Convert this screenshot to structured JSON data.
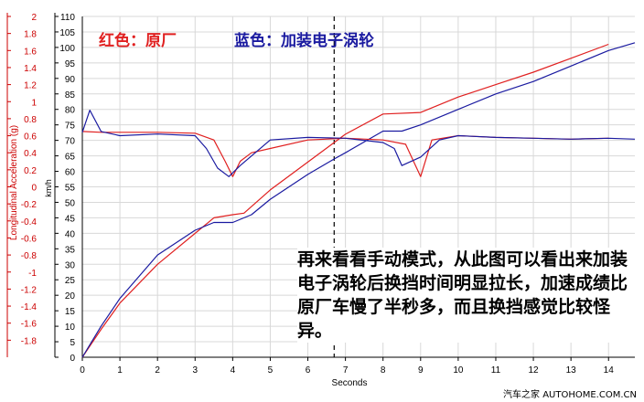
{
  "legend": {
    "red_label": "红色：原厂",
    "blue_label": "蓝色：加装电子涡轮"
  },
  "annotation": "再来看看手动模式，从此图可以看出来加装电子涡轮后换挡时间明显拉长，加速成绩比原厂车慢了半秒多，而且换挡感觉比较怪异。",
  "watermark": "汽车之家 AUTOHOME.COM.CN",
  "colors": {
    "red": "#e02020",
    "blue": "#1a1aa0",
    "grid": "#d8d8d8",
    "marker": "#000000"
  },
  "chart_data": {
    "type": "line",
    "xlabel": "Seconds",
    "x_ticks": [
      0,
      1,
      2,
      3,
      4,
      5,
      6,
      7,
      8,
      9,
      10,
      11,
      12,
      13,
      14
    ],
    "xlim": [
      0,
      14.7
    ],
    "left_axis": {
      "label": "Longitudinal Acceleration (g)",
      "range": [
        -2,
        2
      ],
      "ticks": [
        "2",
        "1.8",
        "1.6",
        "1.4",
        "1.2",
        "1",
        "0.8",
        "0.6",
        "0.4",
        "0.2",
        "0",
        "-0.2",
        "-0.4",
        "-0.6",
        "-0.8",
        "-1",
        "-1.2",
        "-1.4",
        "-1.6",
        "-1.8"
      ]
    },
    "speed_axis": {
      "label": "km/h",
      "range": [
        0,
        110
      ],
      "ticks": [
        "110",
        "105",
        "100",
        "95",
        "90",
        "85",
        "80",
        "75",
        "70",
        "65",
        "60",
        "55",
        "50",
        "45",
        "40",
        "35",
        "30",
        "25",
        "20",
        "15",
        "10",
        "5",
        "0"
      ]
    },
    "marker_x": 6.7,
    "series": [
      {
        "color": "red",
        "kind": "speed",
        "points": [
          [
            0,
            0
          ],
          [
            0.5,
            9
          ],
          [
            1,
            17.5
          ],
          [
            2,
            30
          ],
          [
            3,
            40
          ],
          [
            3.5,
            45
          ],
          [
            4,
            46
          ],
          [
            4.3,
            46.5
          ],
          [
            5,
            54
          ],
          [
            6,
            63
          ],
          [
            7,
            72
          ],
          [
            8,
            78.5
          ],
          [
            9,
            79
          ],
          [
            10,
            84
          ],
          [
            11,
            88
          ],
          [
            12,
            92
          ],
          [
            13,
            96.5
          ],
          [
            14,
            101
          ]
        ]
      },
      {
        "color": "blue",
        "kind": "speed",
        "points": [
          [
            0,
            0
          ],
          [
            0.5,
            10
          ],
          [
            1,
            19
          ],
          [
            2,
            33
          ],
          [
            3,
            41
          ],
          [
            3.5,
            43.5
          ],
          [
            4,
            43.5
          ],
          [
            4.5,
            46
          ],
          [
            5,
            51
          ],
          [
            6,
            59
          ],
          [
            6.7,
            64
          ],
          [
            7,
            66
          ],
          [
            8,
            73
          ],
          [
            8.5,
            73
          ],
          [
            9,
            75
          ],
          [
            10,
            80
          ],
          [
            11,
            85
          ],
          [
            12,
            89
          ],
          [
            13,
            94
          ],
          [
            14,
            99
          ],
          [
            14.7,
            101.5
          ]
        ]
      },
      {
        "color": "red",
        "kind": "accel",
        "points": [
          [
            0,
            0.65
          ],
          [
            0.5,
            0.64
          ],
          [
            1,
            0.64
          ],
          [
            2,
            0.64
          ],
          [
            3,
            0.63
          ],
          [
            3.5,
            0.55
          ],
          [
            3.8,
            0.3
          ],
          [
            4,
            0.12
          ],
          [
            4.2,
            0.3
          ],
          [
            4.5,
            0.4
          ],
          [
            5,
            0.45
          ],
          [
            6,
            0.55
          ],
          [
            7,
            0.57
          ],
          [
            8,
            0.55
          ],
          [
            8.6,
            0.5
          ],
          [
            9,
            0.12
          ],
          [
            9.3,
            0.55
          ],
          [
            10,
            0.6
          ],
          [
            11,
            0.58
          ],
          [
            12,
            0.57
          ],
          [
            13,
            0.56
          ],
          [
            14,
            0.57
          ]
        ]
      },
      {
        "color": "blue",
        "kind": "accel",
        "points": [
          [
            0,
            0.64
          ],
          [
            0.2,
            0.9
          ],
          [
            0.5,
            0.65
          ],
          [
            1,
            0.6
          ],
          [
            2,
            0.62
          ],
          [
            3,
            0.6
          ],
          [
            3.3,
            0.45
          ],
          [
            3.6,
            0.22
          ],
          [
            3.9,
            0.12
          ],
          [
            4.2,
            0.25
          ],
          [
            5,
            0.55
          ],
          [
            6,
            0.58
          ],
          [
            7,
            0.57
          ],
          [
            8,
            0.52
          ],
          [
            8.3,
            0.45
          ],
          [
            8.5,
            0.25
          ],
          [
            9,
            0.35
          ],
          [
            9.5,
            0.55
          ],
          [
            10,
            0.6
          ],
          [
            11,
            0.58
          ],
          [
            12,
            0.57
          ],
          [
            13,
            0.56
          ],
          [
            14,
            0.57
          ],
          [
            14.7,
            0.56
          ]
        ]
      }
    ]
  }
}
